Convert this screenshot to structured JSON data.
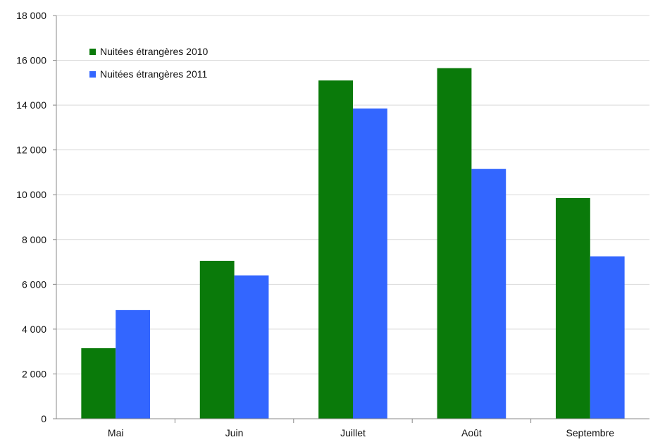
{
  "chart_data": {
    "type": "bar",
    "categories": [
      "Mai",
      "Juin",
      "Juillet",
      "Août",
      "Septembre"
    ],
    "series": [
      {
        "name": "Nuitées étrangères 2010",
        "color": "#0a7a0a",
        "values": [
          3150,
          7050,
          15100,
          15650,
          9850
        ]
      },
      {
        "name": "Nuitées étrangères 2011",
        "color": "#3366ff",
        "values": [
          4850,
          6400,
          13850,
          11150,
          7250
        ]
      }
    ],
    "ylim": [
      0,
      18000
    ],
    "yticks": [
      0,
      2000,
      4000,
      6000,
      8000,
      10000,
      12000,
      14000,
      16000,
      18000
    ],
    "ytick_labels": [
      "0",
      "2 000",
      "4 000",
      "6 000",
      "8 000",
      "10 000",
      "12 000",
      "14 000",
      "16 000",
      "18 000"
    ],
    "grid": true,
    "legend_position": "top-left"
  }
}
